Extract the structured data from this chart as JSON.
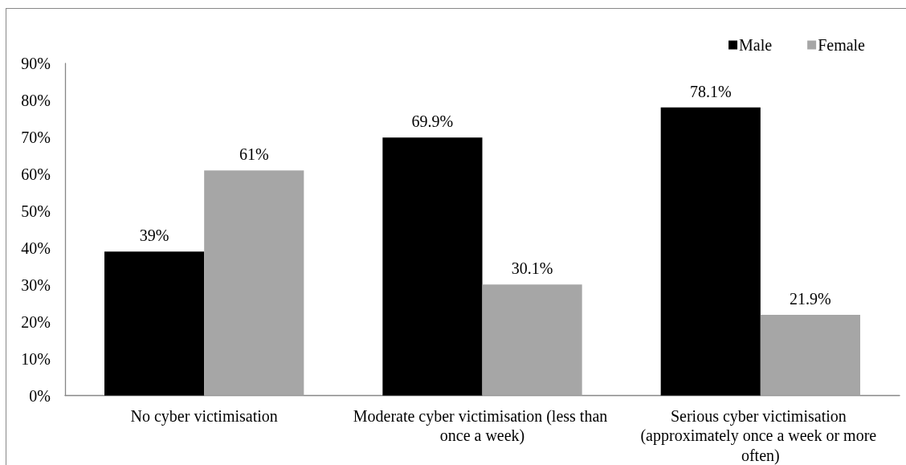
{
  "chart_data": {
    "type": "bar",
    "categories": [
      "No cyber victimisation",
      "Moderate cyber victimisation (less than once a week)",
      "Serious cyber victimisation (approximately once a week or more often)"
    ],
    "series": [
      {
        "name": "Male",
        "color": "#000000",
        "values": [
          39,
          69.9,
          78.1
        ],
        "value_labels": [
          "39%",
          "69.9%",
          "78.1%"
        ]
      },
      {
        "name": "Female",
        "color": "#a6a6a6",
        "values": [
          61,
          30.1,
          21.9
        ],
        "value_labels": [
          "61%",
          "30.1%",
          "21.9%"
        ]
      }
    ],
    "ylim": [
      0,
      90
    ],
    "yticks": [
      {
        "value": 0,
        "label": "0%"
      },
      {
        "value": 10,
        "label": "10%"
      },
      {
        "value": 20,
        "label": "20%"
      },
      {
        "value": 30,
        "label": "30%"
      },
      {
        "value": 40,
        "label": "40%"
      },
      {
        "value": 50,
        "label": "50%"
      },
      {
        "value": 60,
        "label": "60%"
      },
      {
        "value": 70,
        "label": "70%"
      },
      {
        "value": 80,
        "label": "80%"
      },
      {
        "value": 90,
        "label": "90%"
      }
    ],
    "legend": "top right"
  }
}
